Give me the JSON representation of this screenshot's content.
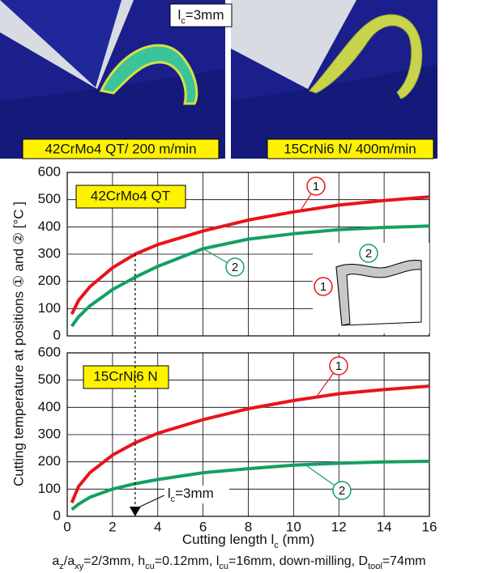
{
  "images": [
    {
      "label": "42CrMo4 QT/ 200 m/min"
    },
    {
      "label": "15CrNi6 N/ 400m/min"
    }
  ],
  "image_annotation": [
    "l",
    "c",
    "=3mm"
  ],
  "ylabel": "Cutting temperature at positions ① and ② [°C ]",
  "footer": [
    "a",
    "z",
    "/a",
    "xy",
    "=2/3mm, h",
    "cu",
    "=0.12mm, l",
    "cu",
    "=16mm, down-milling, D",
    "tool",
    "=74mm"
  ],
  "chart_data": [
    {
      "type": "line",
      "label": "42CrMo4 QT",
      "x": [
        0.2,
        0.5,
        1,
        2,
        3,
        4,
        6,
        8,
        10,
        12,
        14,
        16
      ],
      "series": [
        {
          "name": "1",
          "color": "#e8141c",
          "values": [
            80,
            130,
            180,
            250,
            300,
            335,
            385,
            425,
            455,
            480,
            497,
            510
          ]
        },
        {
          "name": "2",
          "color": "#13a063",
          "values": [
            35,
            70,
            110,
            170,
            215,
            255,
            320,
            355,
            375,
            390,
            398,
            403
          ]
        }
      ],
      "xlim": [
        0,
        16
      ],
      "xticks": [
        0,
        2,
        4,
        6,
        8,
        10,
        12,
        14,
        16
      ],
      "ylim": [
        0,
        600
      ],
      "yticks": [
        0,
        100,
        200,
        300,
        400,
        500,
        600
      ],
      "grid": true
    },
    {
      "type": "line",
      "label": "15CrNi6 N",
      "x": [
        0.2,
        0.5,
        1,
        2,
        3,
        4,
        6,
        8,
        10,
        12,
        14,
        16
      ],
      "series": [
        {
          "name": "1",
          "color": "#e8141c",
          "values": [
            50,
            110,
            160,
            225,
            270,
            305,
            355,
            395,
            425,
            450,
            465,
            478
          ]
        },
        {
          "name": "2",
          "color": "#13a063",
          "values": [
            25,
            45,
            70,
            100,
            120,
            135,
            160,
            175,
            188,
            195,
            200,
            202
          ]
        }
      ],
      "xlim": [
        0,
        16
      ],
      "xticks": [
        0,
        2,
        4,
        6,
        8,
        10,
        12,
        14,
        16
      ],
      "ylim": [
        0,
        600
      ],
      "yticks": [
        0,
        100,
        200,
        300,
        400,
        500,
        600
      ],
      "grid": true,
      "xlabel": [
        "Cutting length l",
        "c",
        " (mm)"
      ],
      "marker": {
        "x": 3,
        "label": [
          "l",
          "c",
          "=3mm"
        ]
      }
    }
  ]
}
